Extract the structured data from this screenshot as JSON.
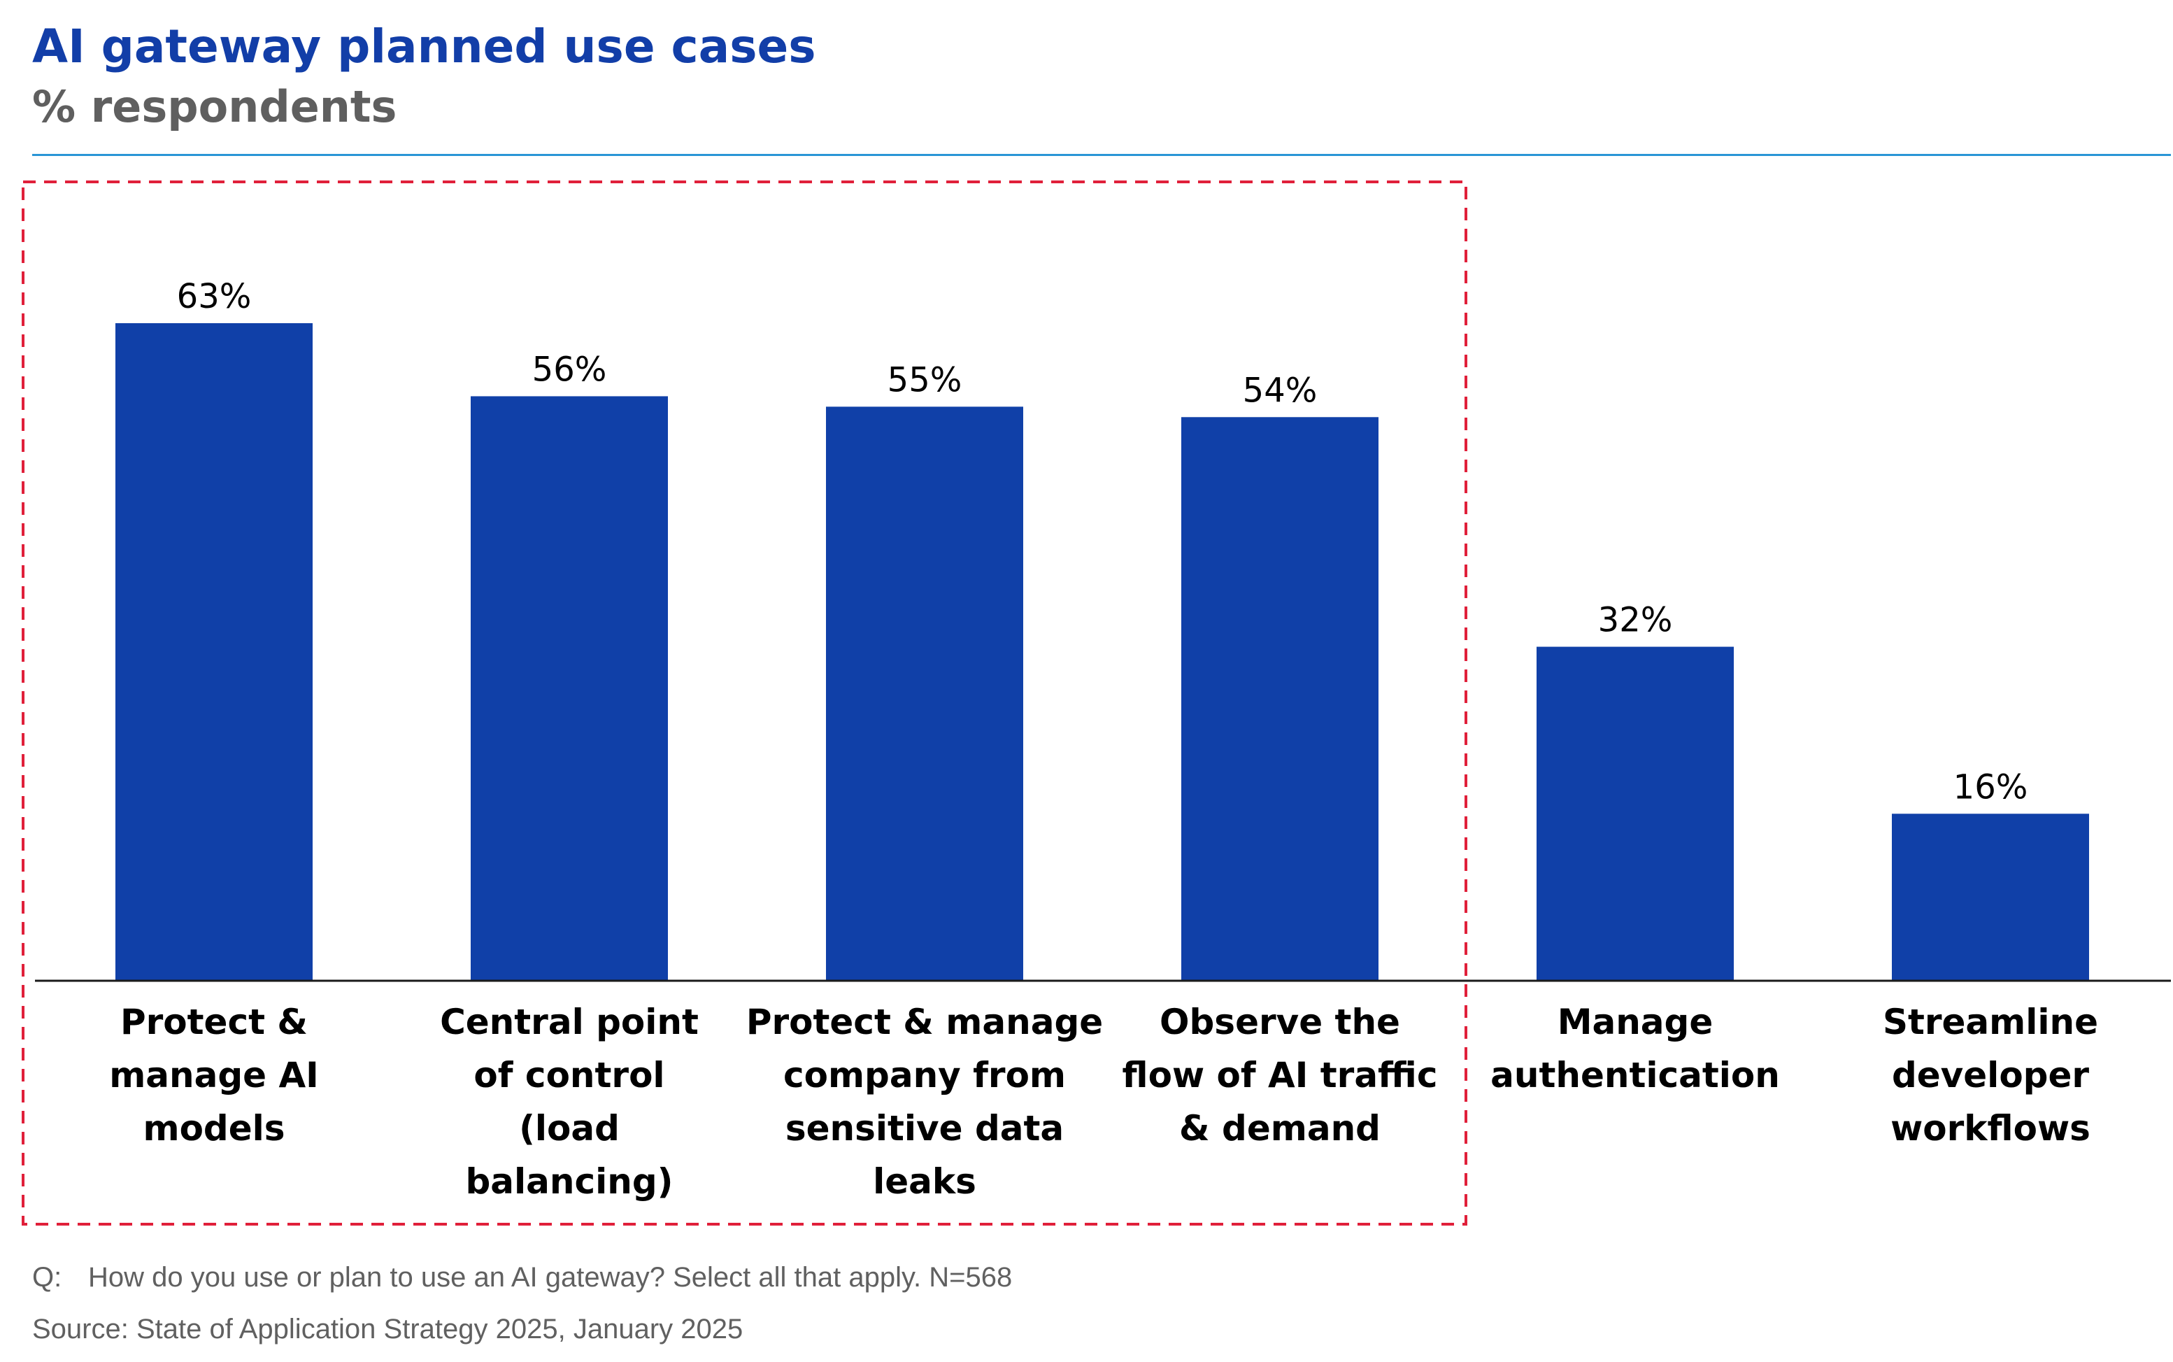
{
  "header": {
    "title": "AI gateway planned use cases",
    "subtitle": "% respondents"
  },
  "colors": {
    "bar": "#1040a8",
    "title": "#123ea8",
    "subtitle": "#5f5f5f",
    "rule": "#2a96d6",
    "highlight_box": "#e0203a"
  },
  "footer": {
    "question_prefix": "Q:",
    "question": "How do you use or plan to use an AI gateway? Select all that apply. N=568",
    "source": "Source: State of Application Strategy 2025, January 2025"
  },
  "chart_data": {
    "type": "bar",
    "categories": [
      "Protect & manage AI models",
      "Central point of control (load balancing)",
      "Protect & manage company from sensitive data leaks",
      "Observe the flow of AI traffic & demand",
      "Manage authentication",
      "Streamline developer workflows"
    ],
    "category_lines": [
      [
        "Protect &",
        "manage AI",
        "models"
      ],
      [
        "Central point",
        "of control",
        "(load",
        "balancing)"
      ],
      [
        "Protect & manage",
        "company from",
        "sensitive data",
        "leaks"
      ],
      [
        "Observe the",
        "flow of AI traffic",
        "& demand"
      ],
      [
        "Manage",
        "authentication"
      ],
      [
        "Streamline",
        "developer",
        "workflows"
      ]
    ],
    "values": [
      63,
      56,
      55,
      54,
      32,
      16
    ],
    "value_labels": [
      "63%",
      "56%",
      "55%",
      "54%",
      "32%",
      "16%"
    ],
    "unit": "%",
    "ylim": [
      0,
      100
    ],
    "grid": false,
    "legend": "none",
    "highlighted_categories": [
      0,
      1,
      2,
      3
    ]
  }
}
